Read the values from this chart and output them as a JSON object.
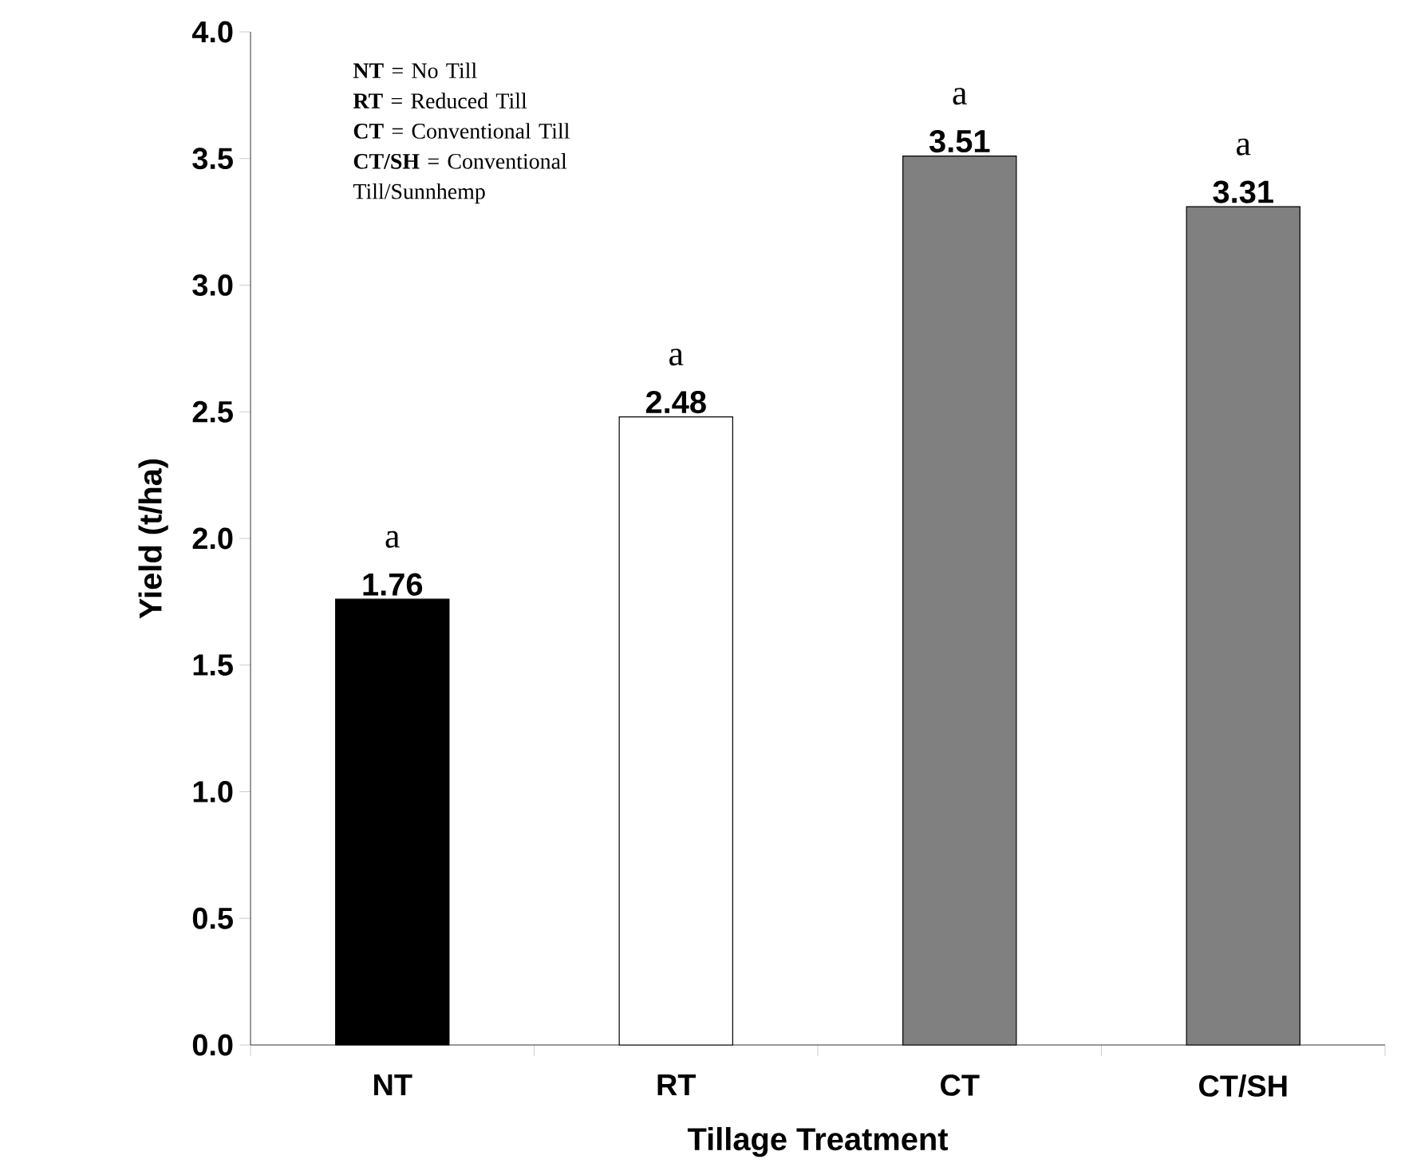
{
  "chart_data": {
    "type": "bar",
    "xlabel": "Tillage Treatment",
    "ylabel": "Yield (t/ha)",
    "categories": [
      "NT",
      "RT",
      "CT",
      "CT/SH"
    ],
    "values": [
      1.76,
      2.48,
      3.51,
      3.31
    ],
    "colors": [
      "#000000",
      "#ffffff",
      "#808080",
      "#808080"
    ],
    "data_labels": true,
    "ylim": [
      0,
      4
    ],
    "yticks": [
      {
        "value": 0,
        "label": "0.0"
      },
      {
        "value": 0.5,
        "label": "0.5"
      },
      {
        "value": 1,
        "label": "1.0"
      },
      {
        "value": 1.5,
        "label": "1.5"
      },
      {
        "value": 2,
        "label": "2.0"
      },
      {
        "value": 2.5,
        "label": "2.5"
      },
      {
        "value": 3,
        "label": "3.0"
      },
      {
        "value": 3.5,
        "label": "3.5"
      },
      {
        "value": 4,
        "label": "4.0"
      }
    ],
    "grid": false,
    "annotations": [
      "**NT** = No Till",
      "**RT** = Reduced Till",
      "**CT** = Conventional Till",
      "**CT/SH** = Conventional Till/Sunnhemp",
      {
        "text": "a",
        "x": "NT",
        "y": 1.76
      },
      {
        "text": "a",
        "x": "RT",
        "y": 2.48
      },
      {
        "text": "a",
        "x": "CT",
        "y": 3.51
      },
      {
        "text": "a",
        "x": "CT/SH",
        "y": 3.31
      }
    ]
  }
}
